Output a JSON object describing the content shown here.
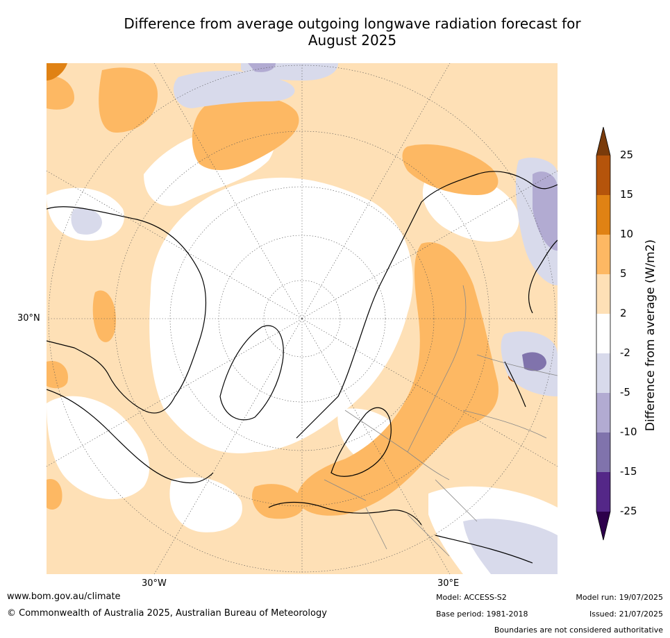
{
  "title_line1": "Difference from average outgoing longwave radiation forecast for",
  "title_line2": "August 2025",
  "axis_labels": {
    "lat_30n": "30°N",
    "lon_30w": "30°W",
    "lon_30e": "30°E"
  },
  "colorbar": {
    "title": "Difference from average (W/m2)",
    "ticks": [
      "25",
      "15",
      "10",
      "5",
      "2",
      "-2",
      "-5",
      "-10",
      "-15",
      "-25"
    ],
    "colors": {
      "over": "#7a3b0b",
      "15_25": "#b5540b",
      "10_15": "#e08214",
      "5_10": "#fdb863",
      "2_5": "#fee0b6",
      "m2_2": "#ffffff",
      "m5_m2": "#d8daeb",
      "m10_m5": "#b2abd2",
      "m15_m10": "#8073ac",
      "m25_m15": "#542788",
      "under": "#2d004b"
    }
  },
  "footer": {
    "url": "www.bom.gov.au/climate",
    "copyright": "© Commonwealth of Australia 2025, Australian Bureau of Meteorology",
    "model": "Model: ACCESS-S2",
    "base_period": "Base period: 1981-2018",
    "model_run": "Model run: 19/07/2025",
    "issued": "Issued: 21/07/2025",
    "disclaimer": "Boundaries are not considered authoritative"
  }
}
